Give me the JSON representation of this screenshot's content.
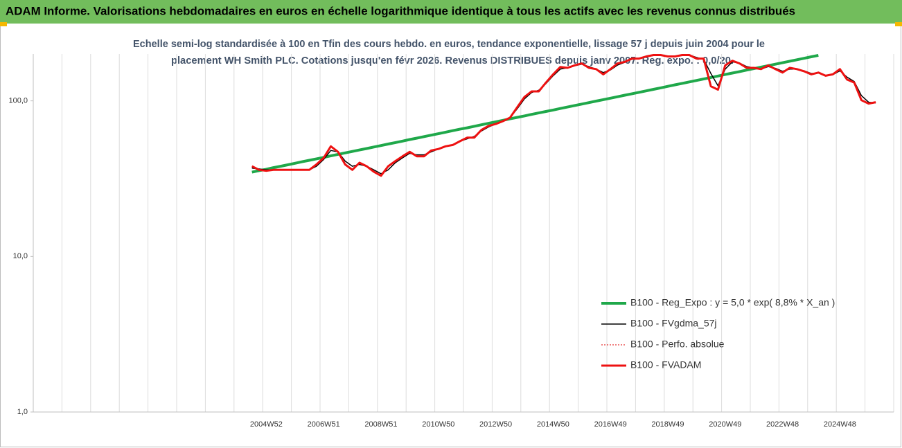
{
  "chart_data": {
    "type": "line",
    "title": "ADAM Informe. Valorisations hebdomadaires en euros en échelle logarithmique identique à tous les actifs avec les revenus connus distribués",
    "subtitle": [
      "Echelle semi-log standardisée à 100 en Tfin des cours hebdo. en euros, tendance exponentielle, lissage 57 j depuis juin 2004 pour le",
      "placement WH Smith PLC. Cotations jusqu'en févr 2026. Revenus DISTRIBUES depuis janv 2007. Reg. expo. : 0,0/20."
    ],
    "categories": [
      null,
      null,
      null,
      null,
      null,
      null,
      null,
      null,
      null,
      null,
      null,
      null,
      null,
      null,
      null,
      null,
      null,
      null,
      null,
      null,
      null,
      null,
      null,
      null,
      null,
      null,
      null,
      null,
      null,
      null,
      null,
      null,
      "2004W52",
      null,
      null,
      null,
      null,
      null,
      null,
      null,
      "2006W51",
      null,
      null,
      null,
      null,
      null,
      null,
      null,
      "2008W51",
      null,
      null,
      null,
      null,
      null,
      null,
      null,
      "2010W50",
      null,
      null,
      null,
      null,
      null,
      null,
      null,
      "2012W50",
      null,
      null,
      null,
      null,
      null,
      null,
      null,
      "2014W50",
      null,
      null,
      null,
      null,
      null,
      null,
      null,
      "2016W49",
      null,
      null,
      null,
      null,
      null,
      null,
      null,
      "2018W49",
      null,
      null,
      null,
      null,
      null,
      null,
      null,
      "2020W49",
      null,
      null,
      null,
      null,
      null,
      null,
      null,
      "2022W48",
      null,
      null,
      null,
      null,
      null,
      null,
      null,
      "2024W48",
      null,
      null,
      null,
      null,
      null,
      null,
      null
    ],
    "series": [
      {
        "name": "B100 - Reg_Expo : y = 5,0 * exp( 8,8% *  X_an )",
        "color": "#1fa84a",
        "width": 4,
        "style": "solid",
        "values": [
          null,
          null,
          null,
          null,
          null,
          null,
          null,
          null,
          null,
          null,
          null,
          null,
          null,
          null,
          null,
          null,
          null,
          null,
          null,
          null,
          null,
          null,
          null,
          null,
          null,
          null,
          null,
          null,
          null,
          null,
          34.8,
          35.6,
          36.3,
          37.2,
          38.0,
          38.8,
          39.7,
          40.6,
          41.5,
          42.4,
          43.3,
          44.3,
          45.3,
          46.3,
          47.3,
          48.3,
          49.4,
          50.5,
          51.6,
          52.8,
          53.9,
          55.1,
          56.4,
          57.6,
          58.9,
          60.2,
          61.5,
          62.9,
          64.3,
          65.7,
          67.1,
          68.6,
          70.2,
          71.7,
          73.3,
          74.9,
          76.6,
          78.3,
          80.0,
          81.8,
          83.6,
          85.4,
          87.3,
          89.3,
          91.2,
          93.3,
          95.3,
          97.4,
          99.6,
          101.8,
          104.0,
          106.3,
          108.7,
          111.1,
          113.5,
          116.0,
          118.6,
          121.2,
          123.9,
          126.7,
          129.5,
          132.3,
          135.2,
          138.2,
          141.3,
          144.4,
          147.6,
          150.9,
          154.2,
          157.6,
          161.1,
          164.7,
          168.3,
          172.0,
          175.8,
          179.7,
          183.7,
          187.7,
          191.9,
          196.1,
          null,
          null,
          null,
          null,
          null,
          null,
          null,
          null,
          null,
          null
        ]
      },
      {
        "name": "B100 - FVgdma_57j",
        "color": "#000000",
        "width": 1.5,
        "style": "solid",
        "values": [
          null,
          null,
          null,
          null,
          null,
          null,
          null,
          null,
          null,
          null,
          null,
          null,
          null,
          null,
          null,
          null,
          null,
          null,
          null,
          null,
          null,
          null,
          null,
          null,
          null,
          null,
          null,
          null,
          null,
          null,
          37,
          36.5,
          36,
          36,
          36,
          36,
          36,
          36,
          36,
          38,
          42,
          48,
          47,
          41,
          38,
          39,
          38,
          36,
          34,
          36,
          40,
          43,
          46,
          45,
          45,
          47,
          49,
          51,
          52,
          55,
          57,
          59,
          64,
          68,
          71,
          74,
          78,
          89,
          103,
          113,
          117,
          129,
          145,
          160,
          163,
          168,
          172,
          166,
          160,
          152,
          158,
          170,
          177,
          185,
          188,
          192,
          196,
          197,
          194,
          193,
          196,
          197,
          190,
          185,
          150,
          125,
          160,
          178,
          175,
          166,
          163,
          160,
          166,
          162,
          155,
          160,
          160,
          156,
          150,
          151,
          146,
          147,
          156,
          142,
          133,
          108,
          98,
          97,
          null,
          null
        ]
      },
      {
        "name": "B100 - Perfo. absolue",
        "color": "#e00000",
        "width": 1,
        "style": "dotted",
        "values": [
          null,
          null,
          null,
          null,
          null,
          null,
          null,
          null,
          null,
          null,
          null,
          null,
          null,
          null,
          null,
          null,
          null,
          null,
          null,
          null,
          null,
          null,
          null,
          null,
          null,
          null,
          null,
          null,
          null,
          null,
          38,
          36,
          35.5,
          36,
          36,
          36,
          36,
          36,
          36,
          39,
          43,
          51,
          47,
          39,
          36,
          40,
          38,
          35,
          33,
          38,
          41,
          44,
          47,
          44,
          44,
          48,
          49,
          51,
          52,
          55,
          58,
          58,
          65,
          69,
          71,
          74,
          78,
          91,
          106,
          115,
          115,
          131,
          148,
          165,
          163,
          169,
          174,
          163,
          160,
          148,
          160,
          174,
          178,
          187,
          187,
          193,
          197,
          197,
          193,
          193,
          197,
          197,
          187,
          187,
          124,
          118,
          169,
          181,
          174,
          163,
          163,
          160,
          169,
          160,
          152,
          163,
          160,
          155,
          148,
          152,
          145,
          148,
          160,
          137,
          131,
          101,
          96,
          98,
          null,
          null
        ]
      },
      {
        "name": "B100 - FVADAM",
        "color": "#ee1111",
        "width": 3,
        "style": "solid",
        "values": [
          null,
          null,
          null,
          null,
          null,
          null,
          null,
          null,
          null,
          null,
          null,
          null,
          null,
          null,
          null,
          null,
          null,
          null,
          null,
          null,
          null,
          null,
          null,
          null,
          null,
          null,
          null,
          null,
          null,
          null,
          38,
          36,
          35.5,
          36,
          36,
          36,
          36,
          36,
          36,
          39,
          43,
          51,
          47,
          39,
          36,
          40,
          38,
          35,
          33,
          38,
          41,
          44,
          47,
          44,
          44,
          48,
          49,
          51,
          52,
          55,
          58,
          58,
          65,
          69,
          71,
          74,
          78,
          91,
          106,
          115,
          115,
          131,
          148,
          165,
          163,
          169,
          174,
          163,
          160,
          148,
          160,
          174,
          178,
          187,
          187,
          193,
          197,
          197,
          193,
          193,
          197,
          197,
          187,
          187,
          124,
          118,
          169,
          181,
          174,
          163,
          163,
          160,
          169,
          160,
          152,
          163,
          160,
          155,
          148,
          152,
          145,
          148,
          160,
          137,
          131,
          101,
          96,
          98,
          null,
          null
        ]
      }
    ],
    "ylim": [
      1,
      200
    ],
    "ylog": true,
    "yticks": [
      {
        "value": 1,
        "label": "1,0"
      },
      {
        "value": 10,
        "label": "10,0"
      },
      {
        "value": 100,
        "label": "100,0"
      }
    ],
    "legend": "lower right"
  }
}
